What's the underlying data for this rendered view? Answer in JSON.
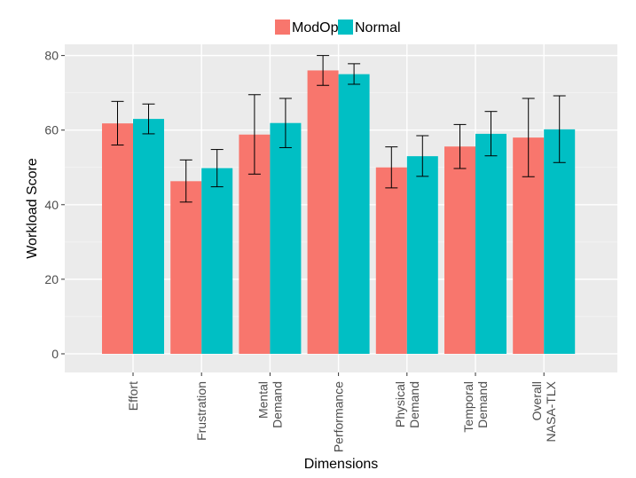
{
  "chart_data": {
    "type": "bar",
    "title": "",
    "xlabel": "Dimensions",
    "ylabel": "Workload Score",
    "ylim": [
      -5,
      83
    ],
    "yticks": [
      0,
      20,
      40,
      60,
      80
    ],
    "grid": true,
    "legend_position": "top",
    "categories": [
      [
        "Effort"
      ],
      [
        "Frustration"
      ],
      [
        "Mental",
        "Demand"
      ],
      [
        "Performance"
      ],
      [
        "Physical",
        "Demand"
      ],
      [
        "Temporal",
        "Demand"
      ],
      [
        "Overall",
        "NASA-TLX"
      ]
    ],
    "series": [
      {
        "name": "ModOp",
        "color": "#F8766D",
        "values": [
          61.8,
          46.3,
          58.8,
          76.0,
          50.0,
          55.6,
          58.0
        ],
        "error_low": [
          56.0,
          40.7,
          48.2,
          72.0,
          44.5,
          49.7,
          47.5
        ],
        "error_high": [
          67.7,
          52.0,
          69.5,
          80.0,
          55.5,
          61.5,
          68.5
        ]
      },
      {
        "name": "Normal",
        "color": "#00BFC4",
        "values": [
          63.0,
          49.8,
          61.9,
          75.0,
          53.0,
          59.0,
          60.2
        ],
        "error_low": [
          59.0,
          44.8,
          55.3,
          72.3,
          47.6,
          53.1,
          51.3
        ],
        "error_high": [
          67.0,
          54.8,
          68.5,
          77.8,
          58.5,
          65.0,
          69.2
        ]
      }
    ]
  }
}
